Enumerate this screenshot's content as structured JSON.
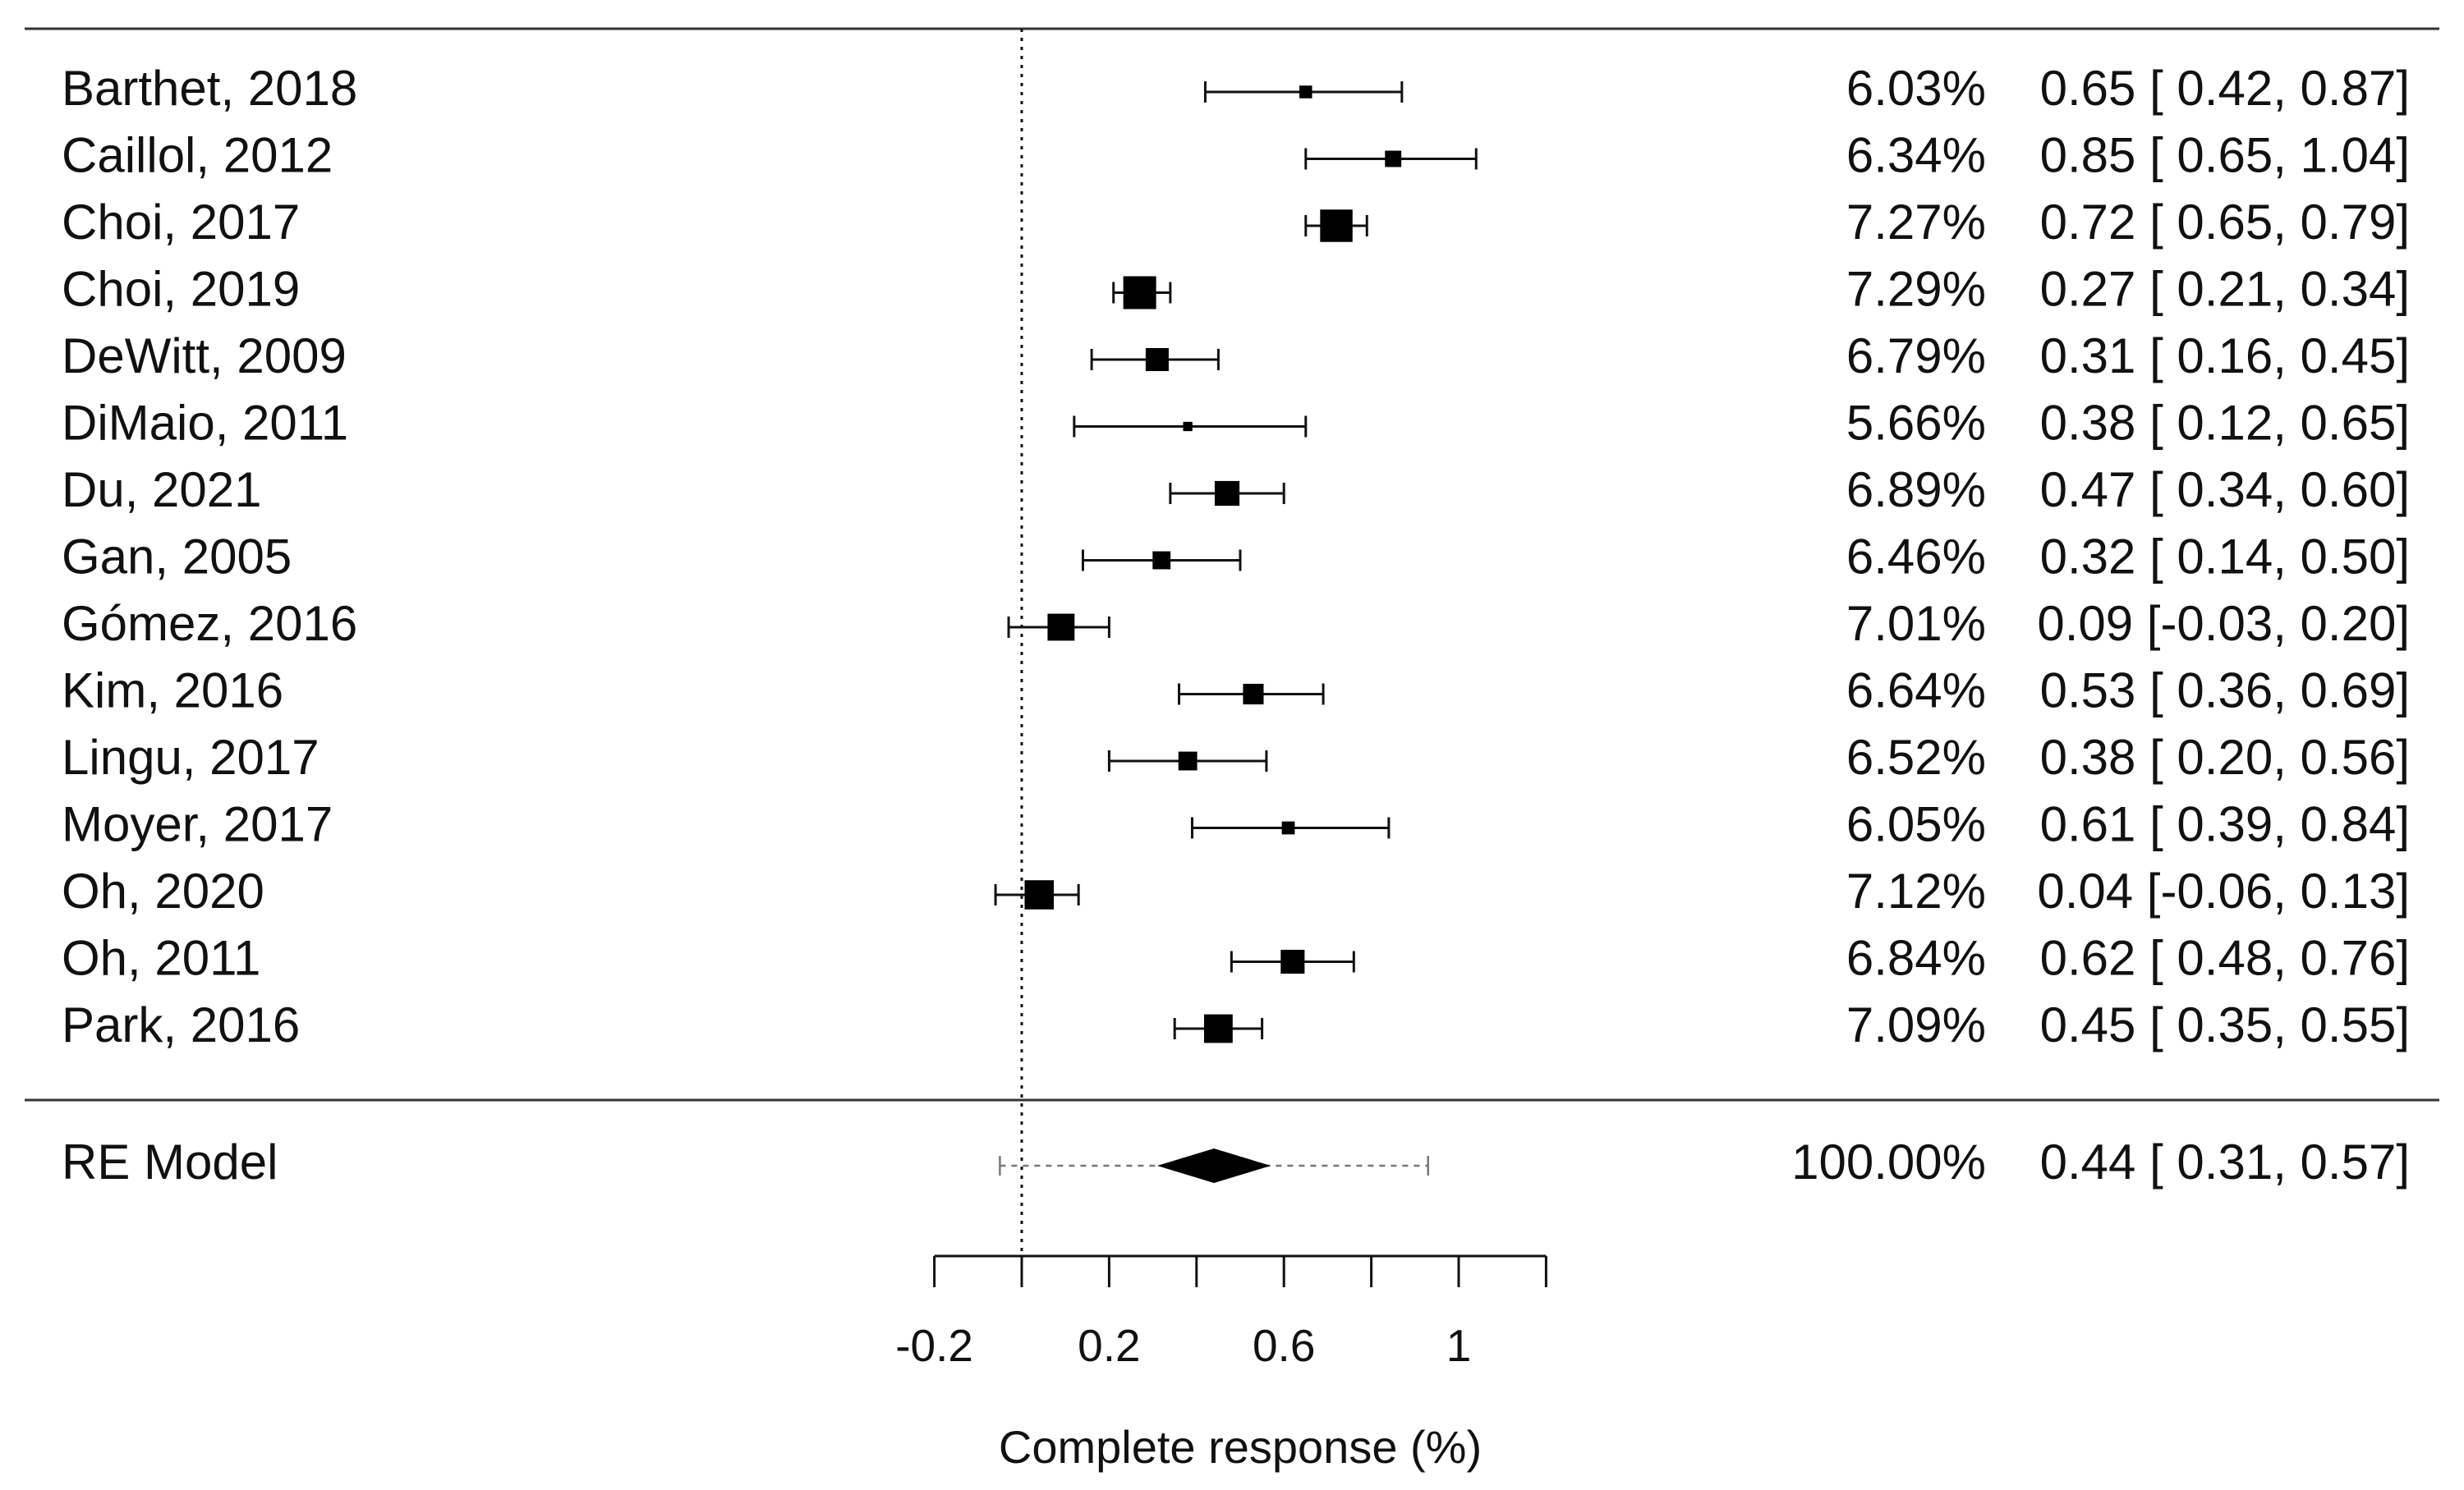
{
  "chart_data": {
    "type": "forest",
    "xlabel": "Complete response (%)",
    "xlim": [
      -0.2,
      1.2
    ],
    "reference_line": 0,
    "ticks": [
      -0.2,
      0,
      0.2,
      0.4,
      0.6,
      0.8,
      1,
      1.2
    ],
    "tick_labels": [
      "-0.2",
      "0.2",
      "0.6",
      "1"
    ],
    "tick_label_values": [
      -0.2,
      0.2,
      0.6,
      1
    ],
    "studies": [
      {
        "label": "Barthet, 2018",
        "weight": "6.03%",
        "est": 0.65,
        "lo": 0.42,
        "hi": 0.87,
        "ci": "0.65 [ 0.42, 0.87]"
      },
      {
        "label": "Caillol, 2012",
        "weight": "6.34%",
        "est": 0.85,
        "lo": 0.65,
        "hi": 1.04,
        "ci": "0.85 [ 0.65, 1.04]"
      },
      {
        "label": "Choi, 2017",
        "weight": "7.27%",
        "est": 0.72,
        "lo": 0.65,
        "hi": 0.79,
        "ci": "0.72 [ 0.65, 0.79]"
      },
      {
        "label": "Choi, 2019",
        "weight": "7.29%",
        "est": 0.27,
        "lo": 0.21,
        "hi": 0.34,
        "ci": "0.27 [ 0.21, 0.34]"
      },
      {
        "label": "DeWitt, 2009",
        "weight": "6.79%",
        "est": 0.31,
        "lo": 0.16,
        "hi": 0.45,
        "ci": "0.31 [ 0.16, 0.45]"
      },
      {
        "label": "DiMaio, 2011",
        "weight": "5.66%",
        "est": 0.38,
        "lo": 0.12,
        "hi": 0.65,
        "ci": "0.38 [ 0.12, 0.65]"
      },
      {
        "label": "Du, 2021",
        "weight": "6.89%",
        "est": 0.47,
        "lo": 0.34,
        "hi": 0.6,
        "ci": "0.47 [ 0.34, 0.60]"
      },
      {
        "label": "Gan, 2005",
        "weight": "6.46%",
        "est": 0.32,
        "lo": 0.14,
        "hi": 0.5,
        "ci": "0.32 [ 0.14, 0.50]"
      },
      {
        "label": "Gómez, 2016",
        "weight": "7.01%",
        "est": 0.09,
        "lo": -0.03,
        "hi": 0.2,
        "ci": "0.09 [-0.03, 0.20]"
      },
      {
        "label": "Kim, 2016",
        "weight": "6.64%",
        "est": 0.53,
        "lo": 0.36,
        "hi": 0.69,
        "ci": "0.53 [ 0.36, 0.69]"
      },
      {
        "label": "Lingu, 2017",
        "weight": "6.52%",
        "est": 0.38,
        "lo": 0.2,
        "hi": 0.56,
        "ci": "0.38 [ 0.20, 0.56]"
      },
      {
        "label": "Moyer, 2017",
        "weight": "6.05%",
        "est": 0.61,
        "lo": 0.39,
        "hi": 0.84,
        "ci": "0.61 [ 0.39, 0.84]"
      },
      {
        "label": "Oh, 2020",
        "weight": "7.12%",
        "est": 0.04,
        "lo": -0.06,
        "hi": 0.13,
        "ci": "0.04 [-0.06, 0.13]"
      },
      {
        "label": "Oh, 2011",
        "weight": "6.84%",
        "est": 0.62,
        "lo": 0.48,
        "hi": 0.76,
        "ci": "0.62 [ 0.48, 0.76]"
      },
      {
        "label": "Park, 2016",
        "weight": "7.09%",
        "est": 0.45,
        "lo": 0.35,
        "hi": 0.55,
        "ci": "0.45 [ 0.35, 0.55]"
      }
    ],
    "summary": {
      "label": "RE Model",
      "weight": "100.00%",
      "est": 0.44,
      "lo": 0.31,
      "hi": 0.57,
      "pi_lo": -0.05,
      "pi_hi": 0.93,
      "ci": "0.44 [ 0.31, 0.57]"
    }
  },
  "colors": {
    "ink": "#111111",
    "marker": "#000000",
    "summary_line": "#777777"
  }
}
